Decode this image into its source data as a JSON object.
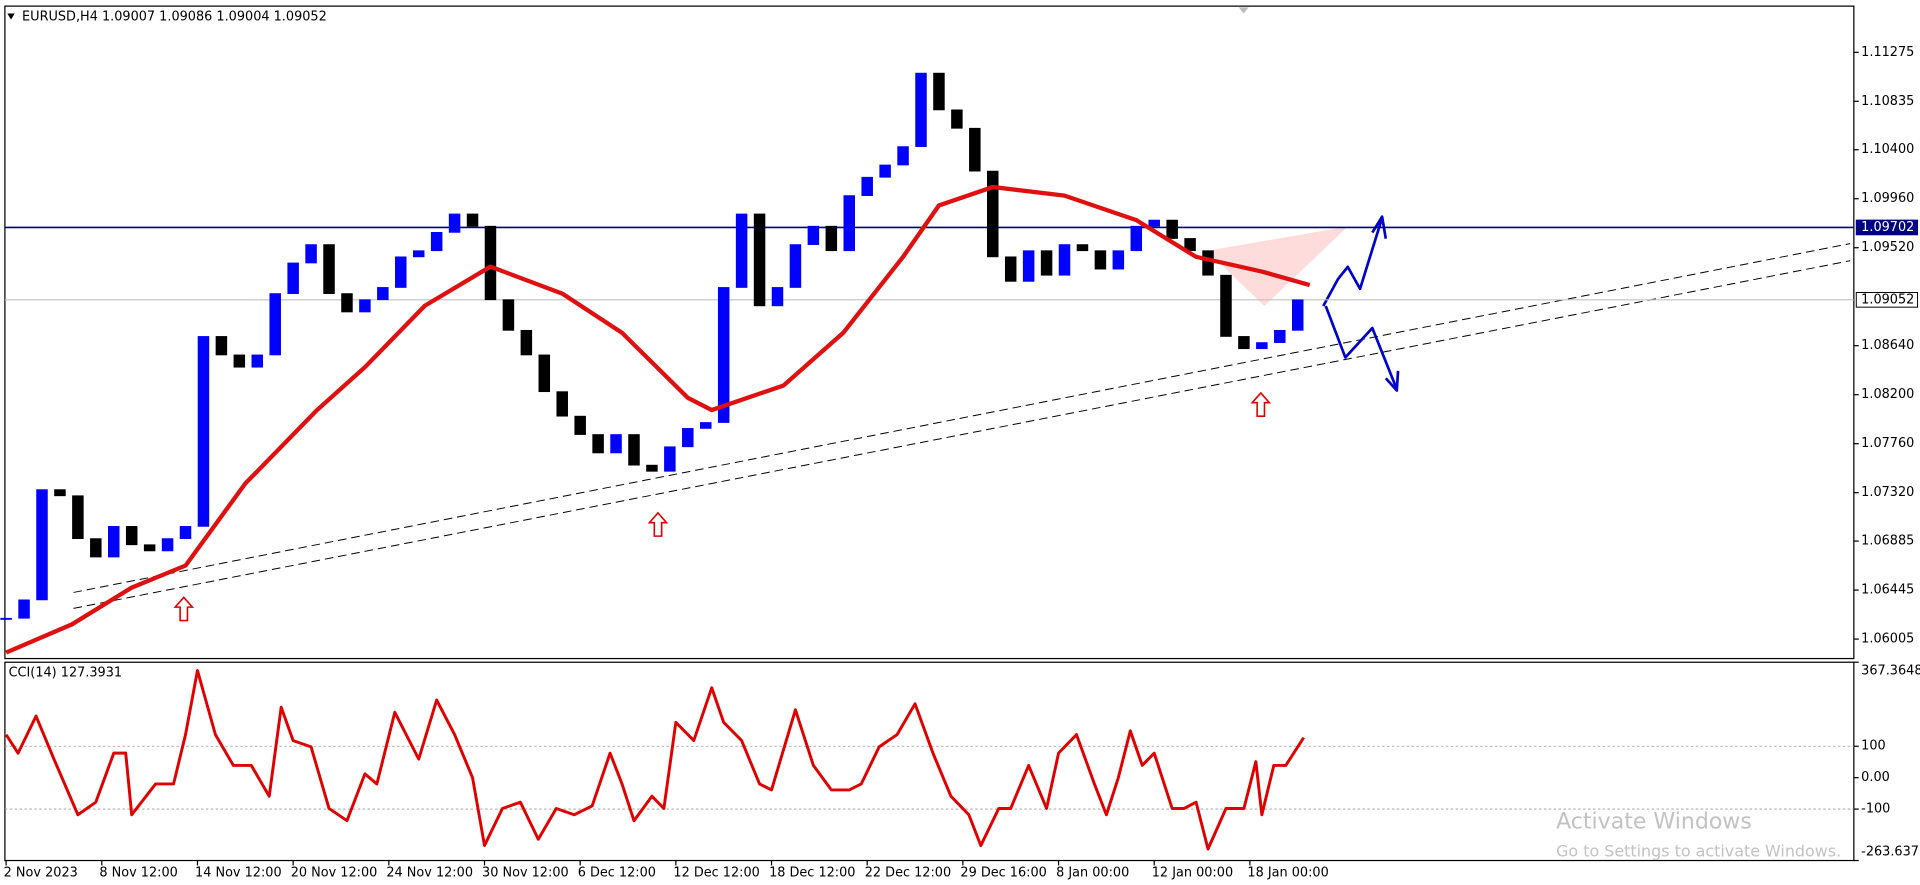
{
  "chart_data": [
    {
      "type": "candlestick",
      "title": "EURUSD,H4  1.09007 1.09086 1.09004 1.09052",
      "up_color": "#0000ff",
      "down_color": "#000000",
      "x": [
        0,
        3,
        6,
        9,
        12,
        15,
        18,
        21,
        24,
        27,
        30,
        33,
        36,
        39,
        42,
        45,
        48,
        51,
        54,
        57,
        60,
        63,
        66,
        69,
        72,
        75,
        78,
        81,
        84,
        87,
        90,
        93,
        96,
        99,
        102,
        105,
        108,
        111,
        114,
        117,
        120,
        123,
        126,
        129,
        132,
        135,
        138,
        141,
        144,
        147,
        150,
        153,
        156,
        159,
        162,
        165,
        168,
        171,
        174,
        177,
        180,
        183,
        186,
        189,
        192,
        195,
        198,
        201,
        204,
        207,
        210,
        213,
        216
      ],
      "close": [
        1.06192,
        1.06357,
        1.07347,
        1.07292,
        1.06907,
        1.06742,
        1.07017,
        1.06852,
        1.06797,
        1.06907,
        1.07017,
        1.08723,
        1.08557,
        1.08447,
        1.08557,
        1.09108,
        1.09383,
        1.09548,
        1.09108,
        1.08943,
        1.09053,
        1.09163,
        1.09438,
        1.09493,
        1.09658,
        1.09823,
        1.09713,
        1.09053,
        1.08778,
        1.08557,
        1.08227,
        1.08007,
        1.07842,
        1.07677,
        1.07842,
        1.07567,
        1.07512,
        1.07732,
        1.07897,
        1.0795,
        1.09163,
        1.09823,
        1.08998,
        1.09163,
        1.09548,
        1.09713,
        1.09493,
        1.09988,
        1.10153,
        1.10263,
        1.10428,
        1.11088,
        1.10758,
        1.10593,
        1.10208,
        1.09438,
        1.09218,
        1.09493,
        1.09273,
        1.09548,
        1.09493,
        1.09328,
        1.09493,
        1.09713,
        1.09768,
        1.09603,
        1.09493,
        1.09273,
        1.08723,
        1.08613,
        1.08668,
        1.08778,
        1.09052
      ],
      "ma": {
        "color": "#e01010",
        "x": [
          0,
          11,
          21,
          30,
          40,
          52,
          60,
          70,
          81,
          93,
          103,
          114,
          118,
          130,
          140,
          150,
          156,
          165,
          177,
          189,
          199,
          210,
          218
        ],
        "values": [
          1.05884,
          1.06137,
          1.06467,
          1.06665,
          1.07402,
          1.08062,
          1.08447,
          1.08998,
          1.0935,
          1.09108,
          1.08756,
          1.08172,
          1.08062,
          1.08282,
          1.08756,
          1.09438,
          1.099,
          1.10065,
          1.09988,
          1.09768,
          1.09438,
          1.09306,
          1.09185
        ]
      },
      "hlines": [
        {
          "value": 1.09702,
          "color": "#000080"
        },
        {
          "value": 1.09052,
          "color": "#c0c0c0"
        }
      ],
      "xlim": [
        0,
        309
      ],
      "ylim": [
        1.0583,
        1.1169
      ],
      "yticks": [
        1.11275,
        1.10835,
        {
          "value": 1.104,
          "label": "1.10400"
        },
        {
          "value": 1.0996,
          "label": "1.09960"
        },
        {
          "value": 1.0952,
          "label": "1.09520"
        },
        {
          "value": 1.0864,
          "label": "1.08640"
        },
        {
          "value": 1.082,
          "label": "1.08200"
        },
        {
          "value": 1.0776,
          "label": "1.07760"
        },
        {
          "value": 1.0732,
          "label": "1.07320"
        },
        1.06885,
        1.06445,
        1.06005
      ]
    },
    {
      "type": "line",
      "title": "CCI(14) 127.3931",
      "color": "#e00000",
      "x": [
        0,
        2,
        5,
        8,
        12,
        15,
        18,
        20,
        21,
        25,
        28,
        30,
        32,
        35,
        38,
        41,
        44,
        46,
        48,
        51,
        54,
        57,
        60,
        62,
        65,
        69,
        72,
        75,
        78,
        80,
        83,
        86,
        89,
        92,
        95,
        98,
        101,
        103,
        105,
        108,
        110,
        112,
        115,
        118,
        120,
        123,
        126,
        128,
        132,
        135,
        138,
        141,
        143,
        146,
        149,
        152,
        155,
        158,
        161,
        163,
        166,
        168,
        171,
        174,
        176,
        179,
        182,
        184,
        186,
        188,
        190,
        192,
        195,
        197,
        199,
        201,
        204,
        207,
        209,
        210,
        212,
        214,
        217
      ],
      "values": [
        137,
        78,
        196,
        59,
        -118,
        -78,
        78,
        78,
        -118,
        -20,
        -20,
        137,
        341,
        137,
        39,
        39,
        -59,
        224,
        118,
        98,
        -98,
        -137,
        12,
        -20,
        208,
        59,
        247,
        137,
        0,
        -216,
        -98,
        -78,
        -196,
        -98,
        -118,
        -90,
        78,
        -20,
        -137,
        -59,
        -98,
        176,
        118,
        286,
        176,
        118,
        -20,
        -39,
        216,
        39,
        -39,
        -39,
        -20,
        98,
        137,
        235,
        78,
        -59,
        -118,
        -216,
        -98,
        -98,
        39,
        -98,
        78,
        137,
        -20,
        -118,
        0,
        149,
        39,
        78,
        -98,
        -98,
        -78,
        -227,
        -98,
        -98,
        51,
        -118,
        39,
        39,
        127.3931
      ],
      "levels": [
        100,
        -100
      ],
      "xlim": [
        0,
        309
      ],
      "ylim": [
        -263.6375,
        367.3648
      ],
      "yticks": [
        367.3648,
        100,
        {
          "value": 0,
          "label": "0.00"
        },
        -100,
        -263.6375
      ],
      "xticks": [
        {
          "value": 0,
          "label": "2 Nov 2023"
        },
        {
          "value": 16,
          "label": "8 Nov 12:00"
        },
        {
          "value": 32,
          "label": "14 Nov 12:00"
        },
        {
          "value": 48,
          "label": "20 Nov 12:00"
        },
        {
          "value": 64,
          "label": "24 Nov 12:00"
        },
        {
          "value": 80,
          "label": "30 Nov 12:00"
        },
        {
          "value": 96,
          "label": "6 Dec 12:00"
        },
        {
          "value": 112,
          "label": "12 Dec 12:00"
        },
        {
          "value": 128,
          "label": "18 Dec 12:00"
        },
        {
          "value": 144,
          "label": "22 Dec 12:00"
        },
        {
          "value": 160,
          "label": "29 Dec 16:00"
        },
        {
          "value": 176,
          "label": "8 Jan 00:00"
        },
        {
          "value": 192,
          "label": "12 Jan 00:00"
        },
        {
          "value": 208,
          "label": "18 Jan 00:00"
        }
      ]
    }
  ],
  "watermark": {
    "title": "Activate Windows",
    "subtitle": "Go to Settings to activate Windows."
  }
}
